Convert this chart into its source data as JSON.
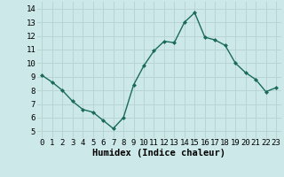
{
  "x": [
    0,
    1,
    2,
    3,
    4,
    5,
    6,
    7,
    8,
    9,
    10,
    11,
    12,
    13,
    14,
    15,
    16,
    17,
    18,
    19,
    20,
    21,
    22,
    23
  ],
  "y": [
    9.1,
    8.6,
    8.0,
    7.2,
    6.6,
    6.4,
    5.8,
    5.2,
    6.0,
    8.4,
    9.8,
    10.9,
    11.6,
    11.5,
    13.0,
    13.7,
    11.9,
    11.7,
    11.3,
    10.0,
    9.3,
    8.8,
    7.9,
    8.2
  ],
  "line_color": "#1a6b5a",
  "marker": "D",
  "marker_size": 2.0,
  "linewidth": 1.0,
  "xlabel": "Humidex (Indice chaleur)",
  "xlim": [
    -0.5,
    23.5
  ],
  "ylim": [
    4.5,
    14.5
  ],
  "yticks": [
    5,
    6,
    7,
    8,
    9,
    10,
    11,
    12,
    13,
    14
  ],
  "xticks": [
    0,
    1,
    2,
    3,
    4,
    5,
    6,
    7,
    8,
    9,
    10,
    11,
    12,
    13,
    14,
    15,
    16,
    17,
    18,
    19,
    20,
    21,
    22,
    23
  ],
  "bg_color": "#cce8e8",
  "grid_color": "#b8d4d4",
  "axis_label_fontsize": 7.5,
  "tick_fontsize": 6.5
}
